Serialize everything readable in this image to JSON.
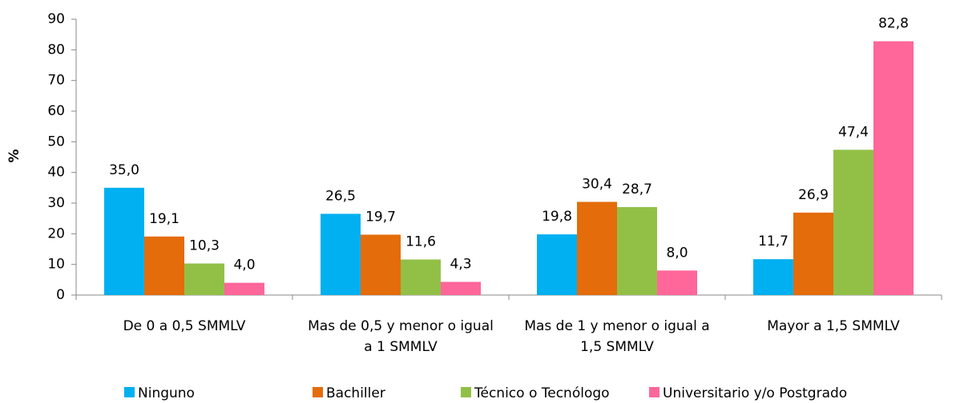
{
  "chart_data": {
    "type": "bar",
    "y_label": "%",
    "categories": [
      "De 0 a 0,5 SMMLV",
      "Mas de 0,5 y menor o igual a 1 SMMLV",
      "Mas de 1 y menor o igual a 1,5 SMMLV",
      "Mayor a 1,5 SMMLV"
    ],
    "series": [
      {
        "name": "Ninguno",
        "color": "#00b0f0",
        "values": [
          35.0,
          26.5,
          19.8,
          11.7
        ],
        "value_labels": [
          "35,0",
          "26,5",
          "19,8",
          "11,7"
        ]
      },
      {
        "name": "Bachiller",
        "color": "#e46c0a",
        "values": [
          19.1,
          19.7,
          30.4,
          26.9
        ],
        "value_labels": [
          "19,1",
          "19,7",
          "30,4",
          "26,9"
        ]
      },
      {
        "name": "Técnico o Tecnólogo",
        "color": "#92c047",
        "values": [
          10.3,
          11.6,
          28.7,
          47.4
        ],
        "value_labels": [
          "10,3",
          "11,6",
          "28,7",
          "47,4"
        ]
      },
      {
        "name": "Universitario y/o Postgrado",
        "color": "#ff6699",
        "values": [
          4.0,
          4.3,
          8.0,
          82.8
        ],
        "value_labels": [
          "4,0",
          "4,3",
          "8,0",
          "82,8"
        ]
      }
    ],
    "ylim": [
      0,
      90
    ],
    "yticks": [
      0,
      10,
      20,
      30,
      40,
      50,
      60,
      70,
      80,
      90
    ],
    "legend": "bottom"
  }
}
